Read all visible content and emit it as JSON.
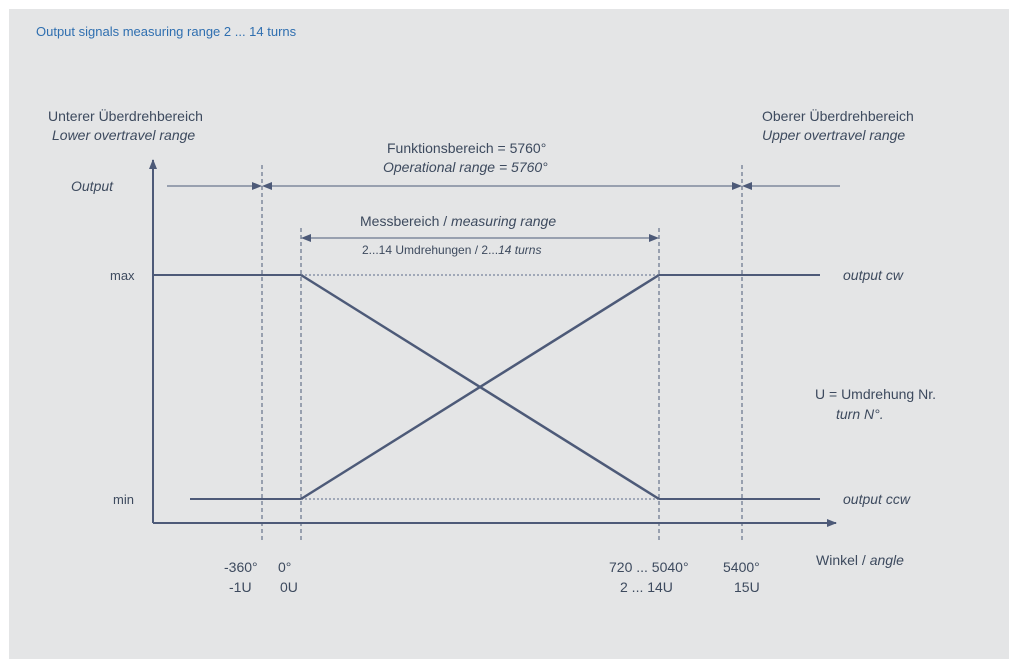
{
  "heading": "Output signals measuring range 2 ... 14 turns",
  "colors": {
    "heading": "#2f6fb0",
    "line": "#4d5a78",
    "text": "#3d4a5e",
    "background": "#e4e5e6"
  },
  "diagram": {
    "lower_range": {
      "de": "Unterer Überdrehbereich",
      "en": "Lower overtravel range"
    },
    "upper_range": {
      "de": "Oberer Überdrehbereich",
      "en": "Upper overtravel range"
    },
    "functional_range": {
      "de": "Funktionsbereich = 5760°",
      "en": "Operational range = 5760°"
    },
    "measuring_range": {
      "de_prefix": "Messbereich / ",
      "en": "measuring range"
    },
    "turns": {
      "de": "2...14 Umdrehungen  / 2...",
      "en": "14 turns"
    },
    "y_axis_label": "Output",
    "max_label": "max",
    "min_label": "min",
    "output_cw": "output cw",
    "output_ccw": "output ccw",
    "legend": {
      "de": "U = Umdrehung Nr.",
      "en": "turn N°."
    },
    "x_axis_label": {
      "de": "Winkel / ",
      "en": "angle"
    },
    "ticks": {
      "m360_deg": "-360°",
      "m360_turn": "-1U",
      "zero_deg": "0°",
      "zero_turn": "0U",
      "range_deg": "720 ... 5040°",
      "range_turn": "2 ... 14U",
      "end_deg": "5400°",
      "end_turn": "15U"
    }
  }
}
